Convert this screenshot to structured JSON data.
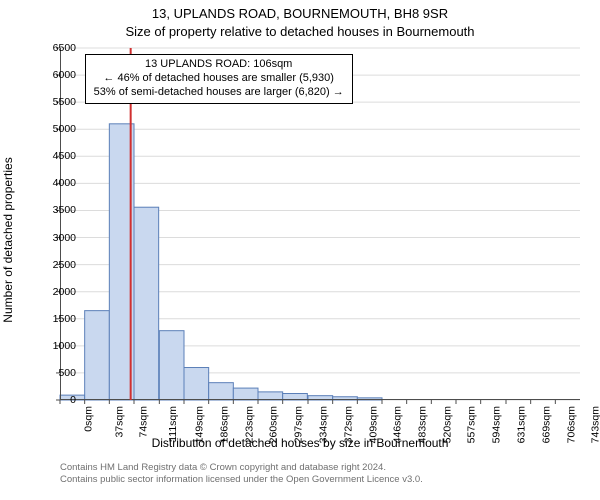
{
  "title": {
    "main": "13, UPLANDS ROAD, BOURNEMOUTH, BH8 9SR",
    "sub": "Size of property relative to detached houses in Bournemouth"
  },
  "ylabel": "Number of detached properties",
  "xlabel": "Distribution of detached houses by size in Bournemouth",
  "chart": {
    "type": "histogram",
    "x_min": 0,
    "x_max": 780,
    "y_min": 0,
    "y_max": 6500,
    "y_ticks": [
      0,
      500,
      1000,
      1500,
      2000,
      2500,
      3000,
      3500,
      4000,
      4500,
      5000,
      5500,
      6000,
      6500
    ],
    "x_tick_positions": [
      0,
      37,
      74,
      111,
      149,
      186,
      223,
      260,
      297,
      334,
      372,
      409,
      446,
      483,
      520,
      557,
      594,
      631,
      669,
      706,
      743
    ],
    "x_tick_labels": [
      "0sqm",
      "37sqm",
      "74sqm",
      "111sqm",
      "149sqm",
      "186sqm",
      "223sqm",
      "260sqm",
      "297sqm",
      "334sqm",
      "372sqm",
      "409sqm",
      "446sqm",
      "483sqm",
      "520sqm",
      "557sqm",
      "594sqm",
      "631sqm",
      "669sqm",
      "706sqm",
      "743sqm"
    ],
    "bin_width": 37,
    "bin_starts": [
      0,
      37,
      74,
      111,
      149,
      186,
      223,
      260,
      297,
      334,
      372,
      409,
      446,
      483,
      520,
      557,
      594,
      631,
      669,
      706,
      743
    ],
    "bin_counts": [
      90,
      1650,
      5100,
      3560,
      1280,
      600,
      320,
      220,
      150,
      120,
      80,
      60,
      40,
      0,
      0,
      0,
      0,
      0,
      0,
      0,
      0
    ],
    "bar_fill": "#c9d8ef",
    "bar_stroke": "#5b7fb8",
    "grid_color": "#dcdcdc",
    "axis_color": "#4d4d4d",
    "marker_line_x": 106,
    "marker_line_color": "#d03030",
    "background": "#ffffff"
  },
  "callout": {
    "line1": "13 UPLANDS ROAD: 106sqm",
    "line2": "← 46% of detached houses are smaller (5,930)",
    "line3": "53% of semi-detached houses are larger (6,820) →"
  },
  "attribution": {
    "line1": "Contains HM Land Registry data © Crown copyright and database right 2024.",
    "line2": "Contains public sector information licensed under the Open Government Licence v3.0."
  },
  "fonts": {
    "title_size_pt": 13,
    "axis_label_size_pt": 12,
    "tick_size_pt": 10.5,
    "callout_size_pt": 11,
    "attribution_size_pt": 9.5
  }
}
